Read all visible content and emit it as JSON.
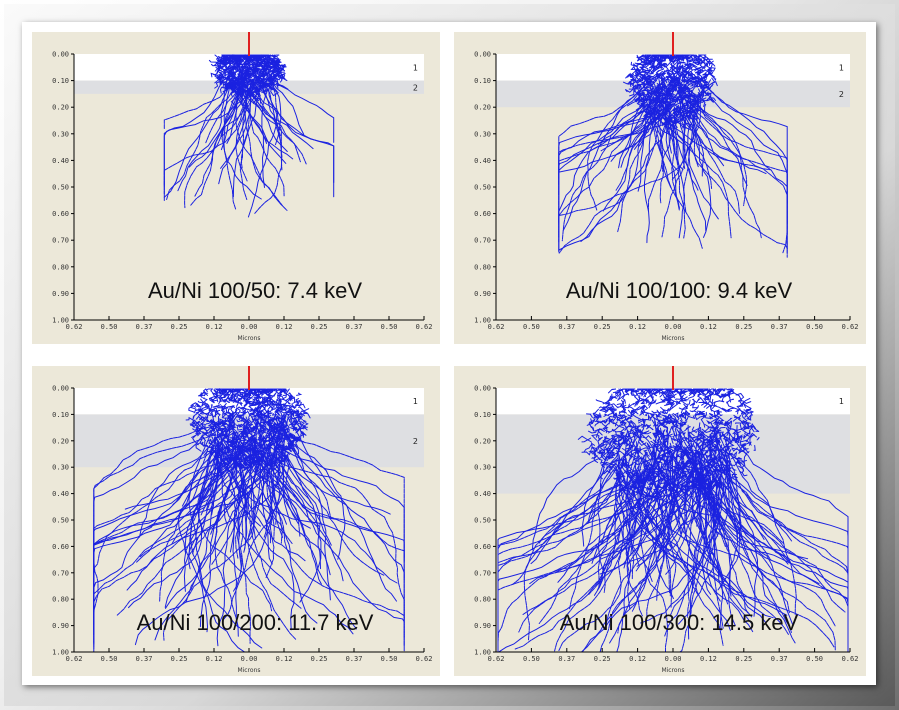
{
  "colors": {
    "panel_bg": "#ece8d9",
    "layer1": "#ffffff",
    "layer2": "#dedfe2",
    "beam": "#e02020",
    "trajectory": "#1b22e0",
    "axis": "#000000"
  },
  "chart_data": [
    {
      "type": "scatter",
      "title": "Au/Ni 100/50: 7.4 keV",
      "xlabel": "Microns",
      "ylabel": "",
      "xlim": [
        -0.62,
        0.62
      ],
      "ylim": [
        0.0,
        1.0
      ],
      "x_ticks": [
        "0.62",
        "0.50",
        "0.37",
        "0.25",
        "0.12",
        "0.00",
        "0.12",
        "0.25",
        "0.37",
        "0.50",
        "0.62"
      ],
      "y_ticks": [
        "0.00",
        "0.10",
        "0.20",
        "0.30",
        "0.40",
        "0.50",
        "0.60",
        "0.70",
        "0.80",
        "0.90",
        "1.00"
      ],
      "layers": [
        {
          "label": "1",
          "top": 0.0,
          "bottom": 0.1
        },
        {
          "label": "2",
          "top": 0.1,
          "bottom": 0.15
        }
      ],
      "core": {
        "cx": 0.0,
        "cy": 0.055,
        "rx": 0.12,
        "ry": 0.1
      },
      "max_depth": 0.6,
      "lateral_spread": 0.3,
      "n_tracks": 45,
      "seed": 11
    },
    {
      "type": "scatter",
      "title": "Au/Ni 100/100: 9.4 keV",
      "xlabel": "Microns",
      "ylabel": "",
      "xlim": [
        -0.62,
        0.62
      ],
      "ylim": [
        0.0,
        1.0
      ],
      "x_ticks": [
        "0.62",
        "0.50",
        "0.37",
        "0.25",
        "0.12",
        "0.00",
        "0.12",
        "0.25",
        "0.37",
        "0.50",
        "0.62"
      ],
      "y_ticks": [
        "0.00",
        "0.10",
        "0.20",
        "0.30",
        "0.40",
        "0.50",
        "0.60",
        "0.70",
        "0.80",
        "0.90",
        "1.00"
      ],
      "layers": [
        {
          "label": "1",
          "top": 0.0,
          "bottom": 0.1
        },
        {
          "label": "2",
          "top": 0.1,
          "bottom": 0.2
        }
      ],
      "core": {
        "cx": 0.0,
        "cy": 0.1,
        "rx": 0.14,
        "ry": 0.16
      },
      "max_depth": 0.75,
      "lateral_spread": 0.4,
      "n_tracks": 70,
      "seed": 23
    },
    {
      "type": "scatter",
      "title": "Au/Ni 100/200: 11.7 keV",
      "xlabel": "Microns",
      "ylabel": "",
      "xlim": [
        -0.62,
        0.62
      ],
      "ylim": [
        0.0,
        1.0
      ],
      "x_ticks": [
        "0.62",
        "0.50",
        "0.37",
        "0.25",
        "0.12",
        "0.00",
        "0.12",
        "0.25",
        "0.37",
        "0.50",
        "0.62"
      ],
      "y_ticks": [
        "0.00",
        "0.10",
        "0.20",
        "0.30",
        "0.40",
        "0.50",
        "0.60",
        "0.70",
        "0.80",
        "0.90",
        "1.00"
      ],
      "layers": [
        {
          "label": "1",
          "top": 0.0,
          "bottom": 0.1
        },
        {
          "label": "2",
          "top": 0.1,
          "bottom": 0.3
        }
      ],
      "core": {
        "cx": 0.0,
        "cy": 0.12,
        "rx": 0.2,
        "ry": 0.18
      },
      "max_depth": 1.0,
      "lateral_spread": 0.55,
      "n_tracks": 110,
      "seed": 37
    },
    {
      "type": "scatter",
      "title": "Au/Ni 100/300: 14.5 keV",
      "xlabel": "Microns",
      "ylabel": "",
      "xlim": [
        -0.62,
        0.62
      ],
      "ylim": [
        0.0,
        1.0
      ],
      "x_ticks": [
        "0.62",
        "0.50",
        "0.37",
        "0.25",
        "0.12",
        "0.00",
        "0.12",
        "0.25",
        "0.37",
        "0.50",
        "0.62"
      ],
      "y_ticks": [
        "0.00",
        "0.10",
        "0.20",
        "0.30",
        "0.40",
        "0.50",
        "0.60",
        "0.70",
        "0.80",
        "0.90",
        "1.00"
      ],
      "layers": [
        {
          "label": "1",
          "top": 0.0,
          "bottom": 0.1
        },
        {
          "label": "",
          "top": 0.1,
          "bottom": 0.4
        }
      ],
      "core": {
        "cx": 0.0,
        "cy": 0.17,
        "rx": 0.3,
        "ry": 0.24
      },
      "max_depth": 1.0,
      "lateral_spread": 0.62,
      "n_tracks": 160,
      "seed": 53
    }
  ]
}
